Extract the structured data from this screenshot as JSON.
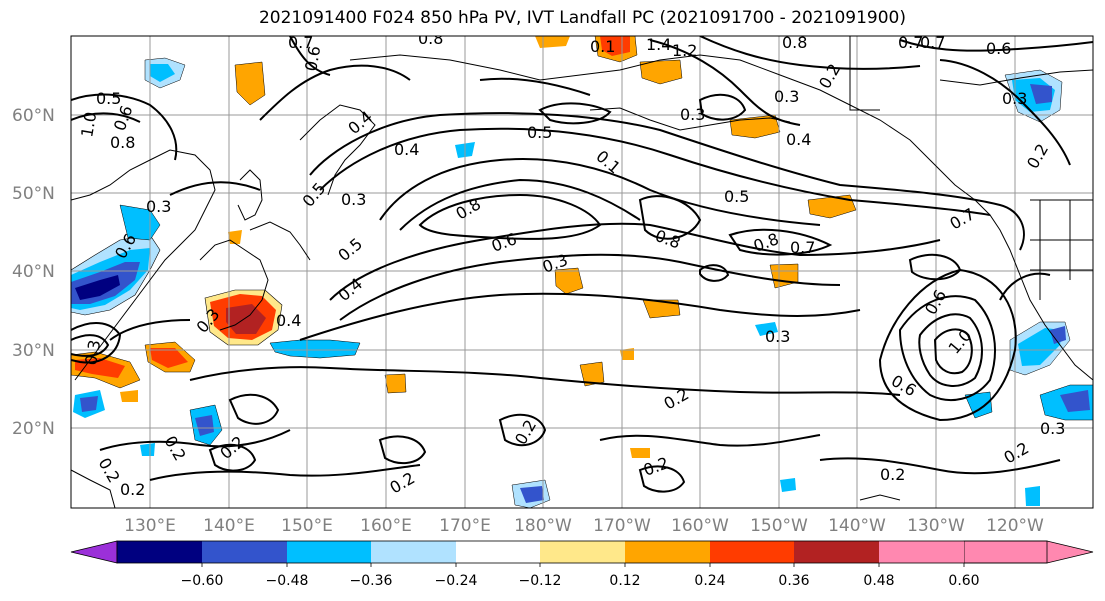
{
  "title": "2021091400 F024 850 hPa PV, IVT Landfall PC (2021091700 - 2021091900)",
  "lat_labels": [
    "60°N",
    "50°N",
    "40°N",
    "30°N",
    "20°N"
  ],
  "lon_labels": [
    "130°E",
    "140°E",
    "150°E",
    "160°E",
    "170°E",
    "180°W",
    "170°W",
    "160°W",
    "150°W",
    "140°W",
    "130°W",
    "120°W"
  ],
  "colorbar": {
    "colors": [
      "#9b30d9",
      "#000080",
      "#3354cc",
      "#00bfff",
      "#b0e2ff",
      "#ffffff",
      "#ffe88a",
      "#ffa500",
      "#ff3c00",
      "#b22222",
      "#ff88b0"
    ],
    "tick_labels": [
      "−0.60",
      "−0.48",
      "−0.36",
      "−0.24",
      "−0.12",
      "0.12",
      "0.24",
      "0.36",
      "0.48",
      "0.60"
    ]
  },
  "contour_labels": [
    "0.7",
    "0.8",
    "0.6",
    "1.4",
    "1.2",
    "0.8",
    "0.7",
    "0.6",
    "0.5",
    "0.6",
    "1.0",
    "0.8",
    "0.3",
    "0.2",
    "0.3",
    "0.4",
    "0.5",
    "0.4",
    "0.3",
    "0.5",
    "0.1",
    "0.4",
    "0.5",
    "0.7",
    "0.8",
    "0.6",
    "0.5",
    "0.6",
    "0.8",
    "0.8",
    "0.7",
    "0.3",
    "0.4",
    "0.3",
    "0.3",
    "0.4",
    "0.3",
    "0.6",
    "1.0",
    "0.6",
    "0.2",
    "0.2",
    "0.2",
    "0.2",
    "0.2",
    "0.2",
    "0.3",
    "0.2",
    "0.2",
    "0.2",
    "0.3",
    "0.3",
    "0.2",
    "0.7",
    "0.1",
    "0.2"
  ]
}
